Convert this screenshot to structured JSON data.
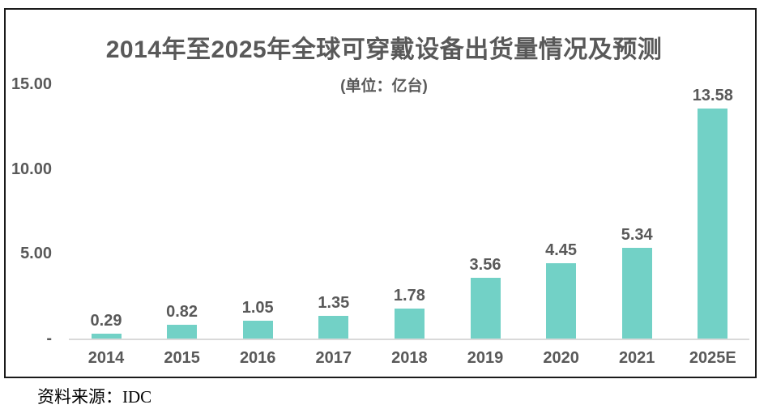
{
  "chart": {
    "title": "2014年至2025年全球可穿戴设备出货量情况及预测",
    "subtitle": "(单位：亿台)",
    "source": "资料来源：IDC"
  },
  "chart_data": {
    "type": "bar",
    "title": "2014年至2025年全球可穿戴设备出货量情况及预测",
    "subtitle": "(单位：亿台)",
    "categories": [
      "2014",
      "2015",
      "2016",
      "2017",
      "2018",
      "2019",
      "2020",
      "2021",
      "2025E"
    ],
    "values": [
      0.29,
      0.82,
      1.05,
      1.35,
      1.78,
      3.56,
      4.45,
      5.34,
      13.58
    ],
    "value_labels": [
      "0.29",
      "0.82",
      "1.05",
      "1.35",
      "1.78",
      "3.56",
      "4.45",
      "5.34",
      "13.58"
    ],
    "xlabel": "",
    "ylabel": "",
    "ylim": [
      0,
      15
    ],
    "y_ticks": [
      "15.00",
      "10.00",
      "5.00",
      "-"
    ],
    "y_tick_values": [
      15,
      10,
      5,
      0
    ],
    "grid": false,
    "legend": "none",
    "bar_color": "#72d1c6",
    "label_color": "#595959",
    "axis_line_color": "#d9d9d9",
    "source": "资料来源：IDC"
  }
}
